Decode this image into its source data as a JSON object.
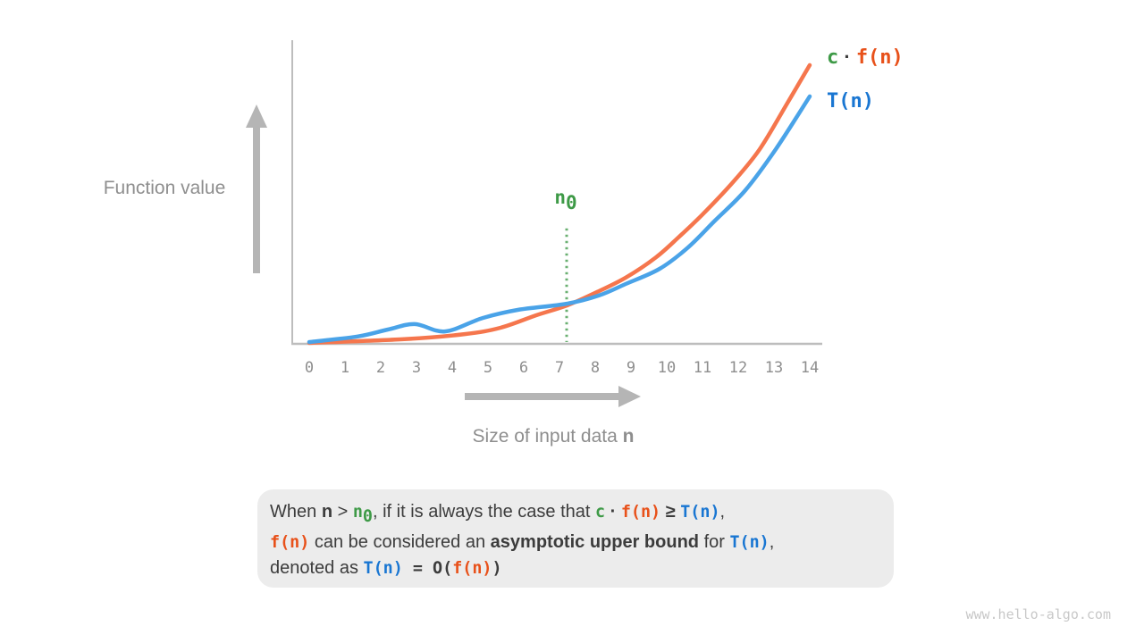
{
  "colors": {
    "green": "#3e9a47",
    "orange": "#e8511a",
    "blue": "#1976d2",
    "curve_orange": "#f5764d",
    "curve_blue": "#4aa3e8",
    "dotted_green": "#69af70",
    "gray_text": "#8e8e8e",
    "dark_text": "#3c3c3c",
    "axis_gray": "#bdbdbd",
    "arrow_gray": "#b5b5b5",
    "box_bg": "#ececec",
    "watermark": "#c8c8c8"
  },
  "y_axis_label": "Function value",
  "x_axis_label_tokens": [
    {
      "t": "Size of input data ",
      "s": "g"
    },
    {
      "t": "n",
      "s": "gb"
    }
  ],
  "legend": {
    "cf_tokens": [
      {
        "t": "c",
        "s": "mg"
      },
      {
        "t": " · ",
        "s": "pb"
      },
      {
        "t": "f(n)",
        "s": "mo"
      }
    ],
    "t_tokens": [
      {
        "t": "T(n)",
        "s": "mb"
      }
    ]
  },
  "n0_label_tokens": [
    {
      "t": "n",
      "s": "mg"
    },
    {
      "t": "0",
      "s": "mg",
      "sub": true
    }
  ],
  "caption": {
    "line1_tokens": [
      {
        "t": "When ",
        "s": "p"
      },
      {
        "t": "n",
        "s": "pb"
      },
      {
        "t": " > ",
        "s": "p"
      },
      {
        "t": "n",
        "s": "mg"
      },
      {
        "t": "0",
        "s": "mg",
        "sub": true
      },
      {
        "t": ", if it is always the case that ",
        "s": "p"
      },
      {
        "t": "c",
        "s": "mg"
      },
      {
        "t": " · ",
        "s": "pb"
      },
      {
        "t": "f(n)",
        "s": "mo"
      },
      {
        "t": " ≥ ",
        "s": "pb"
      },
      {
        "t": "T(n)",
        "s": "mb"
      },
      {
        "t": ",",
        "s": "p"
      }
    ],
    "line2_tokens": [
      {
        "t": "f(n)",
        "s": "mo"
      },
      {
        "t": " can be considered an ",
        "s": "p"
      },
      {
        "t": "asymptotic upper bound",
        "s": "pb"
      },
      {
        "t": " for ",
        "s": "p"
      },
      {
        "t": "T(n)",
        "s": "mb"
      },
      {
        "t": ",",
        "s": "p"
      }
    ],
    "line3_tokens": [
      {
        "t": "denoted as ",
        "s": "p"
      },
      {
        "t": "T(n)",
        "s": "mb"
      },
      {
        "t": " = ",
        "s": "md"
      },
      {
        "t": "O(",
        "s": "md"
      },
      {
        "t": "f(n)",
        "s": "mo"
      },
      {
        "t": ")",
        "s": "md"
      }
    ]
  },
  "watermark": "www.hello-algo.com",
  "chart_data": {
    "type": "line",
    "title": "",
    "xlabel": "Size of input data n",
    "ylabel": "Function value",
    "x_ticks": [
      "0",
      "1",
      "2",
      "3",
      "4",
      "5",
      "6",
      "7",
      "8",
      "9",
      "10",
      "11",
      "12",
      "13",
      "14"
    ],
    "xlim": [
      0,
      14
    ],
    "ylim": [
      0,
      100
    ],
    "grid": false,
    "legend_position": "top-right",
    "annotations": {
      "n0": 7.2,
      "n0_label": "n0",
      "n0_line_top": 38
    },
    "series": [
      {
        "name": "c · f(n)",
        "color": "#f5764d",
        "points": [
          [
            0,
            0.3
          ],
          [
            2.6,
            1.5
          ],
          [
            4.35,
            3.2
          ],
          [
            5.35,
            5.3
          ],
          [
            6.35,
            9.4
          ],
          [
            7.2,
            12.6
          ],
          [
            8,
            16.8
          ],
          [
            8.85,
            21.8
          ],
          [
            9.7,
            28.5
          ],
          [
            10.35,
            35.3
          ],
          [
            11,
            42.6
          ],
          [
            11.85,
            53.2
          ],
          [
            12.6,
            64.1
          ],
          [
            13.35,
            78.8
          ],
          [
            14,
            91.8
          ]
        ]
      },
      {
        "name": "T(n)",
        "color": "#4aa3e8",
        "points": [
          [
            0,
            0.6
          ],
          [
            1.35,
            2.4
          ],
          [
            2.2,
            4.7
          ],
          [
            2.95,
            6.5
          ],
          [
            3.8,
            4.1
          ],
          [
            4.85,
            8.5
          ],
          [
            5.85,
            11.2
          ],
          [
            7.2,
            13.2
          ],
          [
            8.1,
            15.9
          ],
          [
            8.85,
            19.7
          ],
          [
            9.8,
            24.7
          ],
          [
            10.6,
            31.8
          ],
          [
            11.35,
            40.6
          ],
          [
            12.2,
            50.6
          ],
          [
            13.05,
            64.1
          ],
          [
            14,
            81.5
          ]
        ]
      }
    ]
  }
}
